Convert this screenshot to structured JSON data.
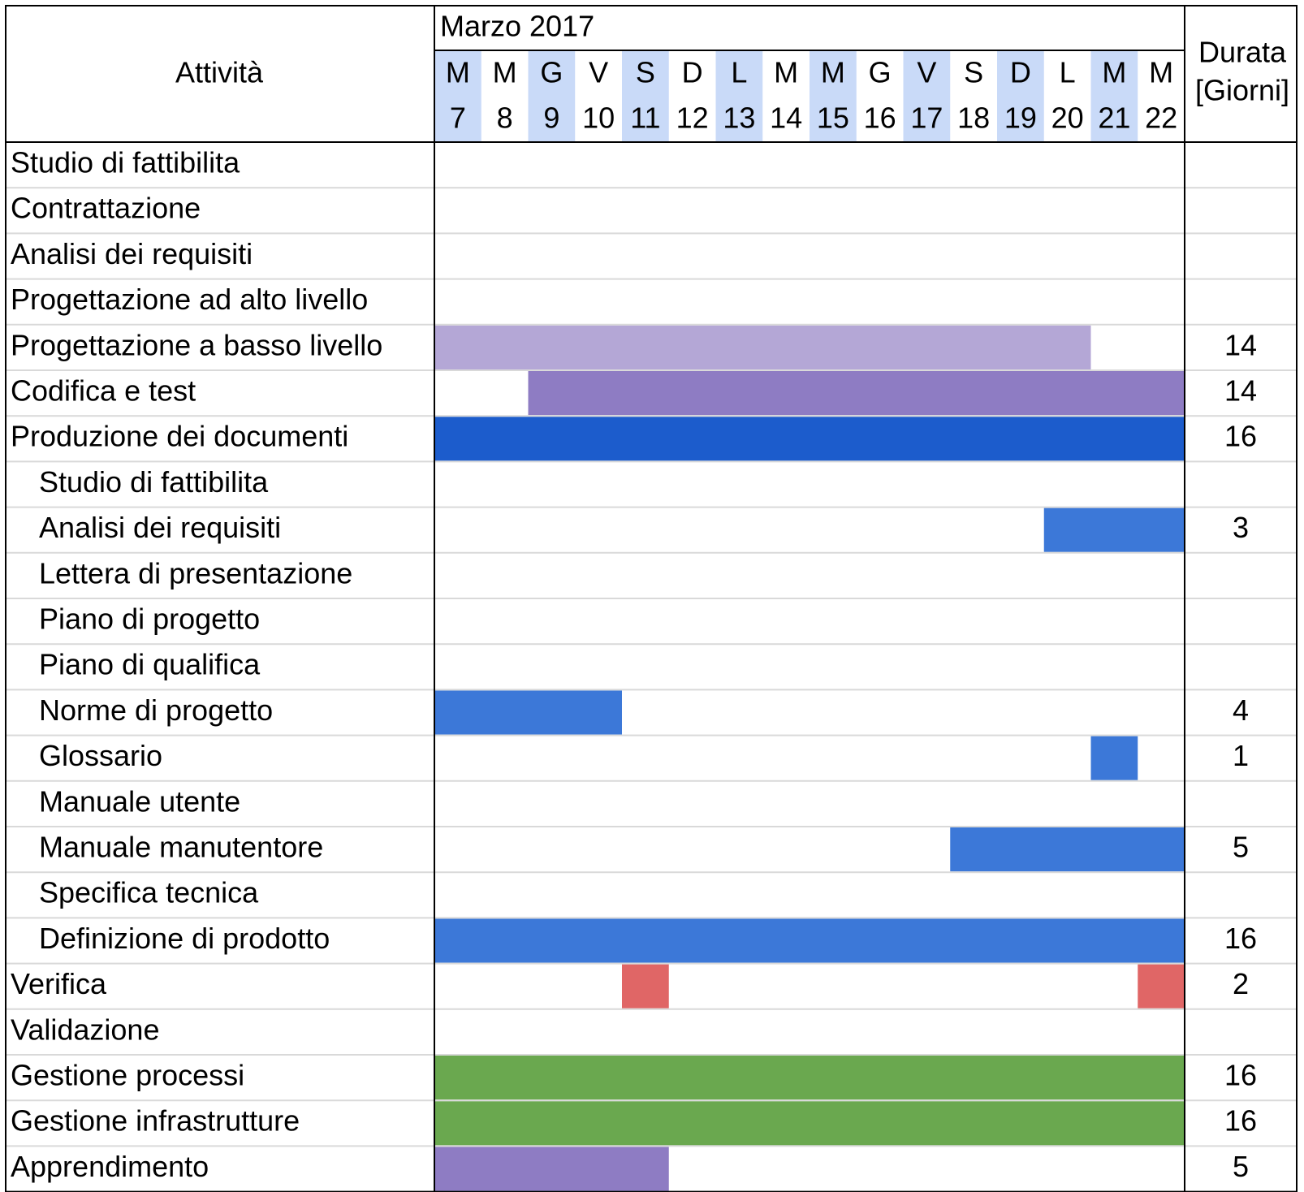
{
  "header": {
    "activity_label": "Attività",
    "month_label": "Marzo 2017",
    "duration_label_line1": "Durata",
    "duration_label_line2": "[Giorni]"
  },
  "colors": {
    "weekday_header_highlight": "#c9daf8",
    "grid_line": "#d9d9d9",
    "border": "#000000",
    "light_purple": "#b4a7d6",
    "purple": "#8e7cc3",
    "dark_blue": "#1c5ccc",
    "blue": "#3c78d8",
    "red": "#e06666",
    "green": "#6aa84f"
  },
  "chart_data": {
    "type": "gantt",
    "days": [
      {
        "weekday": "M",
        "date": "7"
      },
      {
        "weekday": "M",
        "date": "8"
      },
      {
        "weekday": "G",
        "date": "9"
      },
      {
        "weekday": "V",
        "date": "10"
      },
      {
        "weekday": "S",
        "date": "11"
      },
      {
        "weekday": "D",
        "date": "12"
      },
      {
        "weekday": "L",
        "date": "13"
      },
      {
        "weekday": "M",
        "date": "14"
      },
      {
        "weekday": "M",
        "date": "15"
      },
      {
        "weekday": "G",
        "date": "16"
      },
      {
        "weekday": "V",
        "date": "17"
      },
      {
        "weekday": "S",
        "date": "18"
      },
      {
        "weekday": "D",
        "date": "19"
      },
      {
        "weekday": "L",
        "date": "20"
      },
      {
        "weekday": "M",
        "date": "21"
      },
      {
        "weekday": "M",
        "date": "22"
      }
    ],
    "highlighted_days": [
      "7",
      "9",
      "11",
      "13",
      "15",
      "17",
      "19",
      "21"
    ],
    "tasks": [
      {
        "name": "Studio di fattibilita",
        "indent": 0,
        "duration": "",
        "bars": []
      },
      {
        "name": "Contrattazione",
        "indent": 0,
        "duration": "",
        "bars": []
      },
      {
        "name": "Analisi dei requisiti",
        "indent": 0,
        "duration": "",
        "bars": []
      },
      {
        "name": "Progettazione ad alto livello",
        "indent": 0,
        "duration": "",
        "bars": []
      },
      {
        "name": "Progettazione a basso livello",
        "indent": 0,
        "duration": "14",
        "bars": [
          {
            "start": "7",
            "end": "20",
            "color": "light_purple"
          }
        ]
      },
      {
        "name": "Codifica e test",
        "indent": 0,
        "duration": "14",
        "bars": [
          {
            "start": "9",
            "end": "22",
            "color": "purple"
          }
        ]
      },
      {
        "name": "Produzione dei documenti",
        "indent": 0,
        "duration": "16",
        "bars": [
          {
            "start": "7",
            "end": "22",
            "color": "dark_blue"
          }
        ]
      },
      {
        "name": "Studio di fattibilita",
        "indent": 1,
        "duration": "",
        "bars": []
      },
      {
        "name": "Analisi dei requisiti",
        "indent": 1,
        "duration": "3",
        "bars": [
          {
            "start": "20",
            "end": "22",
            "color": "blue"
          }
        ]
      },
      {
        "name": "Lettera di presentazione",
        "indent": 1,
        "duration": "",
        "bars": []
      },
      {
        "name": "Piano di progetto",
        "indent": 1,
        "duration": "",
        "bars": []
      },
      {
        "name": "Piano di qualifica",
        "indent": 1,
        "duration": "",
        "bars": []
      },
      {
        "name": "Norme di progetto",
        "indent": 1,
        "duration": "4",
        "bars": [
          {
            "start": "7",
            "end": "10",
            "color": "blue"
          }
        ]
      },
      {
        "name": "Glossario",
        "indent": 1,
        "duration": "1",
        "bars": [
          {
            "start": "21",
            "end": "21",
            "color": "blue"
          }
        ]
      },
      {
        "name": "Manuale utente",
        "indent": 1,
        "duration": "",
        "bars": []
      },
      {
        "name": "Manuale manutentore",
        "indent": 1,
        "duration": "5",
        "bars": [
          {
            "start": "18",
            "end": "22",
            "color": "blue"
          }
        ]
      },
      {
        "name": "Specifica tecnica",
        "indent": 1,
        "duration": "",
        "bars": []
      },
      {
        "name": "Definizione di prodotto",
        "indent": 1,
        "duration": "16",
        "bars": [
          {
            "start": "7",
            "end": "22",
            "color": "blue"
          }
        ]
      },
      {
        "name": "Verifica",
        "indent": 0,
        "duration": "2",
        "bars": [
          {
            "start": "11",
            "end": "11",
            "color": "red"
          },
          {
            "start": "22",
            "end": "22",
            "color": "red"
          }
        ]
      },
      {
        "name": "Validazione",
        "indent": 0,
        "duration": "",
        "bars": []
      },
      {
        "name": "Gestione processi",
        "indent": 0,
        "duration": "16",
        "bars": [
          {
            "start": "7",
            "end": "22",
            "color": "green"
          }
        ]
      },
      {
        "name": "Gestione infrastrutture",
        "indent": 0,
        "duration": "16",
        "bars": [
          {
            "start": "7",
            "end": "22",
            "color": "green"
          }
        ]
      },
      {
        "name": "Apprendimento",
        "indent": 0,
        "duration": "5",
        "bars": [
          {
            "start": "7",
            "end": "11",
            "color": "purple"
          }
        ]
      }
    ]
  }
}
